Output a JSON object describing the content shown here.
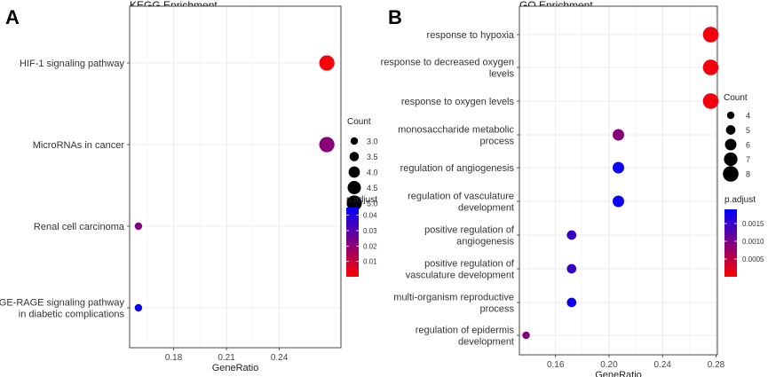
{
  "chart_data": [
    {
      "panel_letter": "A",
      "type": "scatter",
      "title": "KEGG Enrichment",
      "xlabel": "GeneRatio",
      "ylabel": "",
      "xlim": [
        0.155,
        0.275
      ],
      "x_ticks": [
        0.18,
        0.21,
        0.24
      ],
      "x_tick_labels": [
        "0.18",
        "0.21",
        "0.24"
      ],
      "categories": [
        "HIF-1 signaling pathway",
        "MicroRNAs in cancer",
        "Renal cell carcinoma",
        "AGE-RAGE signaling pathway|in diabetic complications"
      ],
      "points": [
        {
          "term": "HIF-1 signaling pathway",
          "gene_ratio": 0.267,
          "count": 5,
          "p_adjust": 0.0015
        },
        {
          "term": "MicroRNAs in cancer",
          "gene_ratio": 0.267,
          "count": 5,
          "p_adjust": 0.021
        },
        {
          "term": "Renal cell carcinoma",
          "gene_ratio": 0.16,
          "count": 3,
          "p_adjust": 0.022
        },
        {
          "term": "AGE-RAGE signaling pathway|in diabetic complications",
          "gene_ratio": 0.16,
          "count": 3,
          "p_adjust": 0.043
        }
      ],
      "size_legend": {
        "title": "Count",
        "values": [
          3,
          3.5,
          4,
          4.5,
          5
        ],
        "labels": [
          "3.0",
          "3.5",
          "4.0",
          "4.5",
          "5.0"
        ]
      },
      "color_legend": {
        "title": "p.adjust",
        "min": 0.0,
        "max": 0.045,
        "ticks": [
          0.01,
          0.02,
          0.03,
          0.04
        ],
        "tick_labels": [
          "0.01",
          "0.02",
          "0.03",
          "0.04"
        ],
        "low_color": "#ff0000",
        "high_color": "#0000ff"
      }
    },
    {
      "panel_letter": "B",
      "type": "scatter",
      "title": "GO Enrichment",
      "xlabel": "GeneRatio",
      "ylabel": "",
      "xlim": [
        0.133,
        0.281
      ],
      "x_ticks": [
        0.16,
        0.2,
        0.24,
        0.28
      ],
      "x_tick_labels": [
        "0.16",
        "0.20",
        "0.24",
        "0.28"
      ],
      "categories": [
        "response to hypoxia",
        "response to decreased oxygen|levels",
        "response to oxygen levels",
        "monosaccharide metabolic|process",
        "regulation of angiogenesis",
        "regulation of vasculature|development",
        "positive regulation of|angiogenesis",
        "positive regulation of|vasculature development",
        "multi-organism reproductive|process",
        "regulation of epidermis|development"
      ],
      "points": [
        {
          "term": "response to hypoxia",
          "gene_ratio": 0.276,
          "count": 8,
          "p_adjust": 0.0001
        },
        {
          "term": "response to decreased oxygen|levels",
          "gene_ratio": 0.276,
          "count": 8,
          "p_adjust": 0.0001
        },
        {
          "term": "response to oxygen levels",
          "gene_ratio": 0.276,
          "count": 8,
          "p_adjust": 0.0001
        },
        {
          "term": "monosaccharide metabolic|process",
          "gene_ratio": 0.207,
          "count": 6,
          "p_adjust": 0.0009
        },
        {
          "term": "regulation of angiogenesis",
          "gene_ratio": 0.207,
          "count": 6,
          "p_adjust": 0.0018
        },
        {
          "term": "regulation of vasculature|development",
          "gene_ratio": 0.207,
          "count": 6,
          "p_adjust": 0.0018
        },
        {
          "term": "positive regulation of|angiogenesis",
          "gene_ratio": 0.172,
          "count": 5,
          "p_adjust": 0.0015
        },
        {
          "term": "positive regulation of|vasculature development",
          "gene_ratio": 0.172,
          "count": 5,
          "p_adjust": 0.0015
        },
        {
          "term": "multi-organism reproductive|process",
          "gene_ratio": 0.172,
          "count": 5,
          "p_adjust": 0.0018
        },
        {
          "term": "regulation of epidermis|development",
          "gene_ratio": 0.138,
          "count": 4,
          "p_adjust": 0.0009
        }
      ],
      "size_legend": {
        "title": "Count",
        "values": [
          4,
          5,
          6,
          7,
          8
        ],
        "labels": [
          "4",
          "5",
          "6",
          "7",
          "8"
        ]
      },
      "color_legend": {
        "title": "p.adjust",
        "min": 0.0,
        "max": 0.0019,
        "ticks": [
          0.0005,
          0.001,
          0.0015
        ],
        "tick_labels": [
          "0.0005",
          "0.0010",
          "0.0015"
        ],
        "low_color": "#ff0000",
        "high_color": "#0000ff"
      }
    }
  ]
}
